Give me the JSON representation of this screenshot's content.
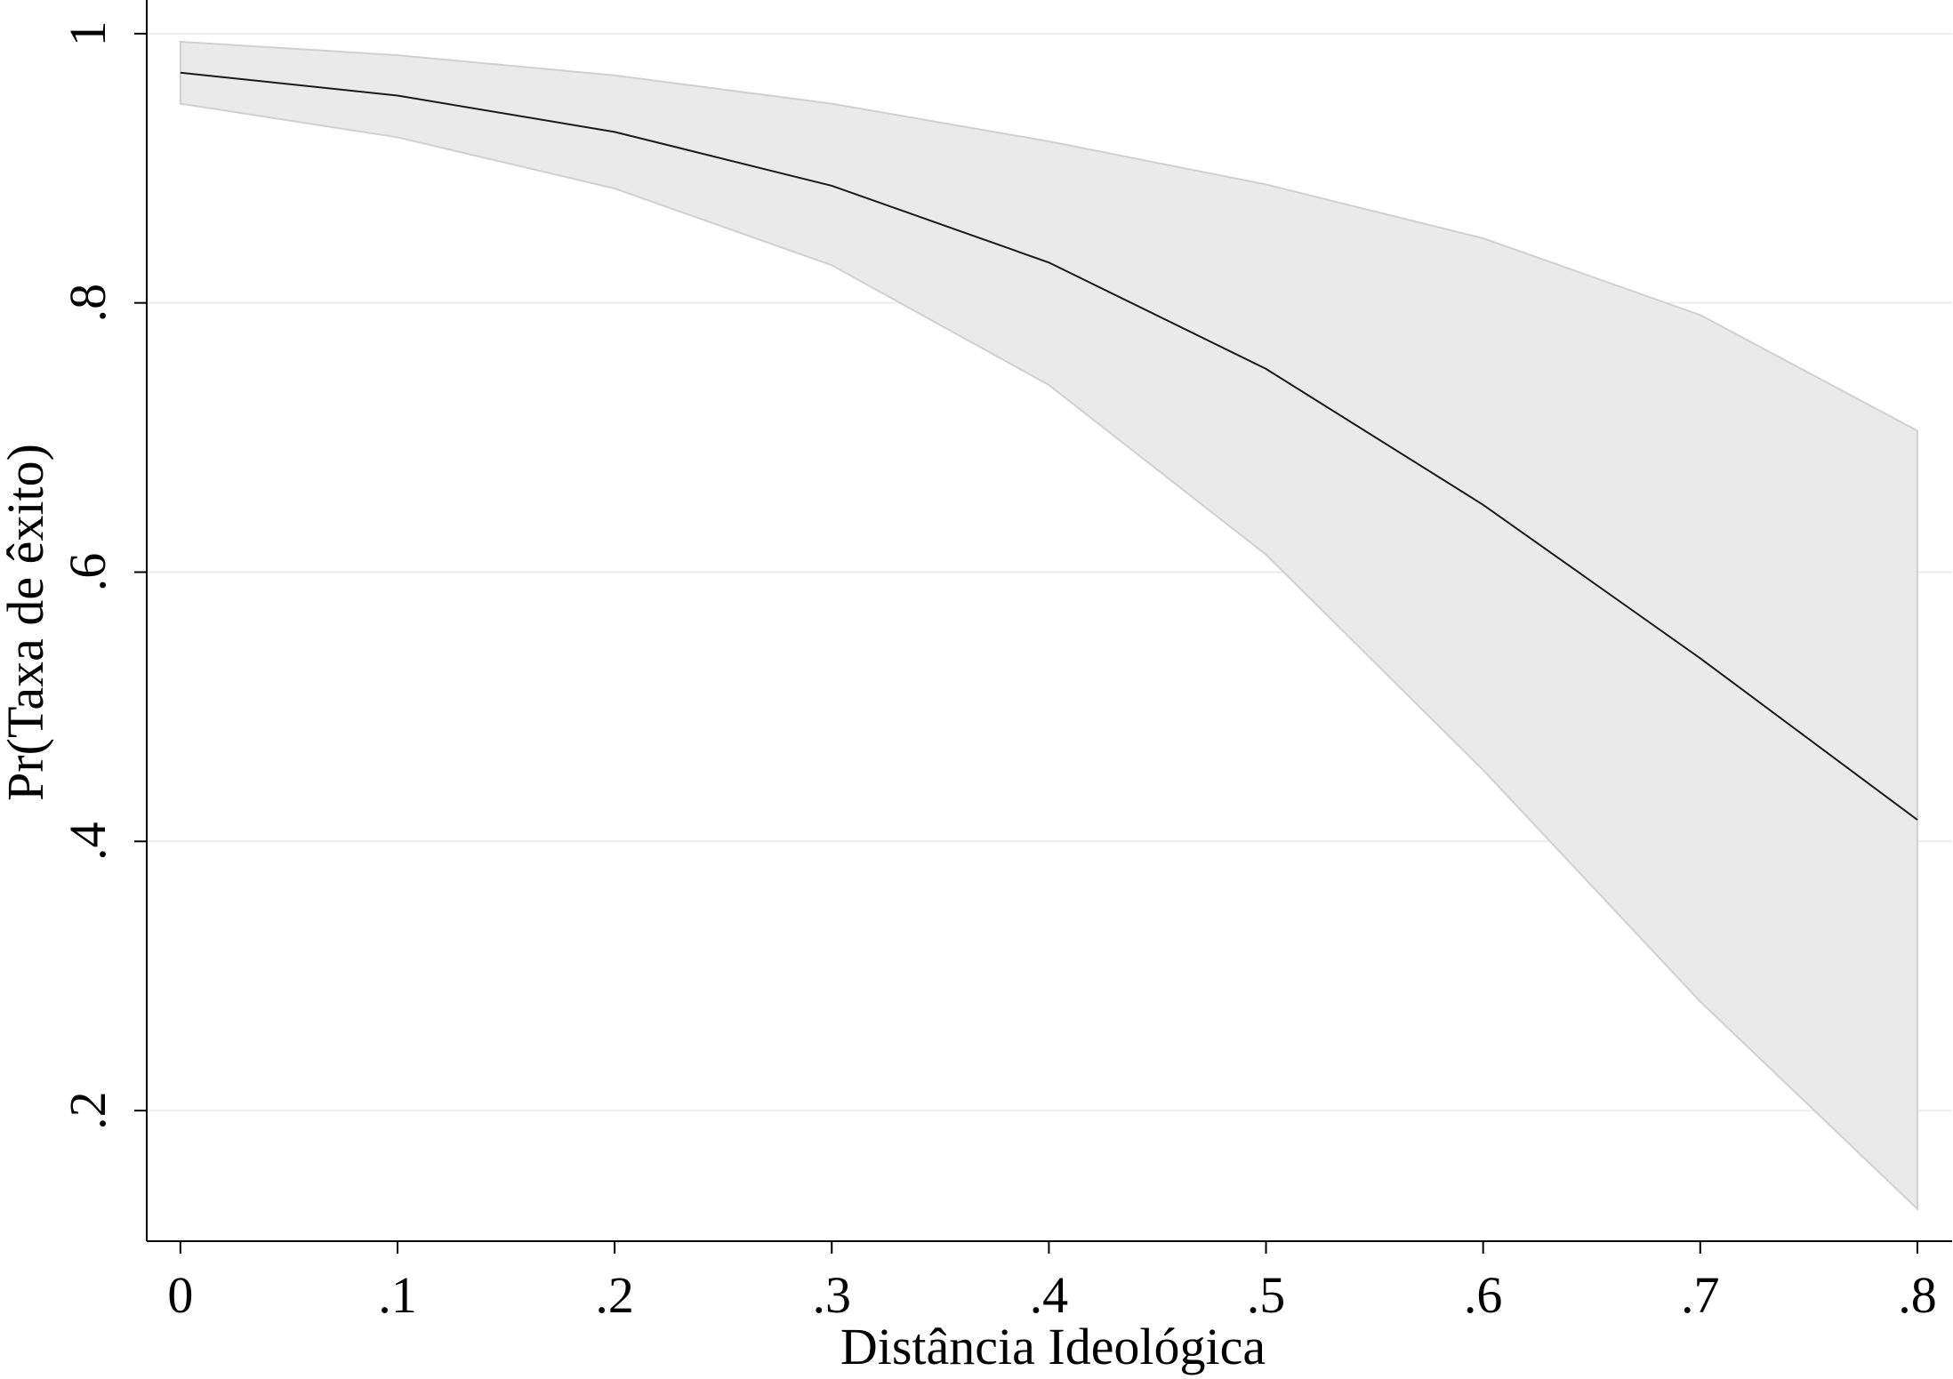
{
  "chart_data": {
    "type": "line",
    "x_label": "Distância Ideológica",
    "y_label": "Pr(Taxa de êxito)",
    "x": [
      0,
      0.1,
      0.2,
      0.3,
      0.4,
      0.5,
      0.6,
      0.7,
      0.8
    ],
    "values": [
      0.971,
      0.954,
      0.927,
      0.887,
      0.83,
      0.751,
      0.65,
      0.536,
      0.416
    ],
    "color": "#1a1a1a",
    "band": {
      "upper": [
        0.994,
        0.984,
        0.969,
        0.948,
        0.92,
        0.888,
        0.848,
        0.791,
        0.705
      ],
      "lower": [
        0.948,
        0.923,
        0.885,
        0.828,
        0.739,
        0.613,
        0.453,
        0.281,
        0.127
      ],
      "color": "#eaeaea"
    },
    "xlim": [
      -0.0155,
      0.816
    ],
    "ylim": [
      0.103,
      1.025
    ],
    "xticks": [
      0,
      {
        "value": 0.1,
        "label": ".1"
      },
      {
        "value": 0.2,
        "label": ".2"
      },
      {
        "value": 0.3,
        "label": ".3"
      },
      {
        "value": 0.4,
        "label": ".4"
      },
      {
        "value": 0.5,
        "label": ".5"
      },
      {
        "value": 0.6,
        "label": ".6"
      },
      {
        "value": 0.7,
        "label": ".7"
      },
      {
        "value": 0.8,
        "label": ".8"
      }
    ],
    "yticks": [
      {
        "value": 0.2,
        "label": ".2"
      },
      {
        "value": 0.4,
        "label": ".4"
      },
      {
        "value": 0.6,
        "label": ".6"
      },
      {
        "value": 0.8,
        "label": ".8"
      },
      1
    ],
    "grid": true
  }
}
